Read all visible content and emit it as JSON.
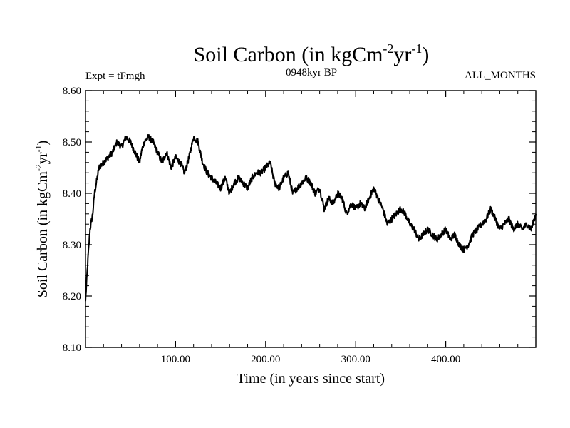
{
  "chart_data": {
    "type": "line",
    "title": {
      "main": "Soil Carbon (in kgCm",
      "sup1": "-2",
      "mid": "yr",
      "sup2": "-1",
      "close": ")"
    },
    "subtitle_left": "Expt = tFmgh",
    "subtitle_center": "0948kyr BP",
    "subtitle_right": "ALL_MONTHS",
    "ylabel": {
      "main": "Soil Carbon (in kgCm",
      "sup1": "-2",
      "mid": "yr",
      "sup2": "-1",
      "close": ")"
    },
    "xlabel": "Time (in years since start)",
    "xlim": [
      0,
      500
    ],
    "ylim": [
      8.1,
      8.6
    ],
    "x_ticks": [
      100,
      200,
      300,
      400
    ],
    "x_tick_labels": [
      "100.00",
      "200.00",
      "300.00",
      "400.00"
    ],
    "y_ticks": [
      8.1,
      8.2,
      8.3,
      8.4,
      8.5,
      8.6
    ],
    "y_tick_labels": [
      "8.10",
      "8.20",
      "8.30",
      "8.40",
      "8.50",
      "8.60"
    ],
    "grid": false,
    "series": [
      {
        "name": "Soil Carbon",
        "x": [
          0,
          1,
          3,
          5,
          8,
          10,
          13,
          15,
          20,
          25,
          30,
          35,
          40,
          45,
          50,
          55,
          60,
          62,
          65,
          70,
          75,
          80,
          85,
          90,
          95,
          100,
          105,
          110,
          115,
          120,
          125,
          130,
          135,
          140,
          145,
          150,
          155,
          160,
          165,
          170,
          175,
          180,
          185,
          190,
          195,
          200,
          205,
          210,
          215,
          220,
          225,
          230,
          235,
          240,
          245,
          250,
          255,
          260,
          265,
          270,
          275,
          280,
          285,
          290,
          295,
          300,
          305,
          310,
          315,
          320,
          325,
          330,
          335,
          340,
          345,
          350,
          355,
          360,
          365,
          370,
          375,
          380,
          385,
          390,
          395,
          400,
          405,
          410,
          415,
          420,
          425,
          430,
          435,
          440,
          445,
          450,
          455,
          460,
          465,
          470,
          475,
          480,
          485,
          490,
          495,
          500
        ],
        "y": [
          8.19,
          8.22,
          8.28,
          8.33,
          8.36,
          8.4,
          8.43,
          8.45,
          8.46,
          8.47,
          8.48,
          8.5,
          8.49,
          8.51,
          8.5,
          8.48,
          8.46,
          8.48,
          8.5,
          8.51,
          8.5,
          8.48,
          8.46,
          8.48,
          8.45,
          8.47,
          8.46,
          8.44,
          8.47,
          8.51,
          8.5,
          8.46,
          8.44,
          8.43,
          8.42,
          8.41,
          8.43,
          8.4,
          8.42,
          8.43,
          8.42,
          8.41,
          8.43,
          8.44,
          8.44,
          8.45,
          8.46,
          8.42,
          8.41,
          8.43,
          8.44,
          8.4,
          8.41,
          8.42,
          8.43,
          8.42,
          8.4,
          8.41,
          8.37,
          8.39,
          8.38,
          8.4,
          8.39,
          8.36,
          8.38,
          8.37,
          8.38,
          8.37,
          8.39,
          8.41,
          8.39,
          8.37,
          8.34,
          8.35,
          8.36,
          8.37,
          8.36,
          8.34,
          8.33,
          8.31,
          8.32,
          8.33,
          8.32,
          8.31,
          8.32,
          8.33,
          8.31,
          8.32,
          8.3,
          8.29,
          8.3,
          8.32,
          8.33,
          8.34,
          8.35,
          8.37,
          8.35,
          8.33,
          8.34,
          8.35,
          8.33,
          8.34,
          8.33,
          8.34,
          8.33,
          8.36
        ]
      }
    ]
  }
}
